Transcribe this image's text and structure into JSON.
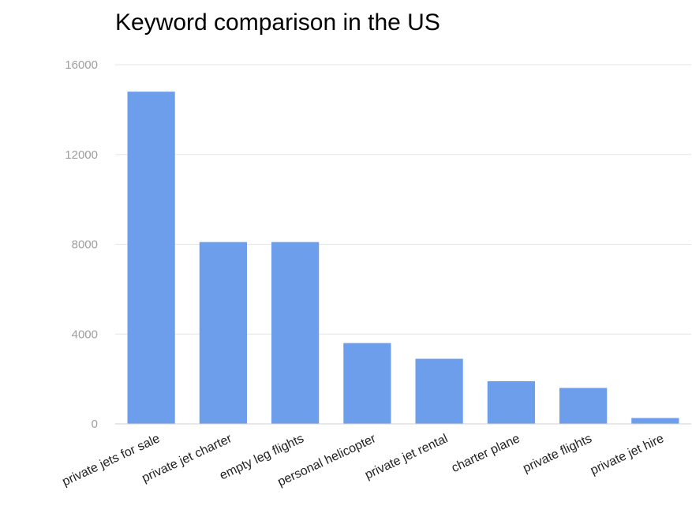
{
  "chart_data": {
    "type": "bar",
    "title": "Keyword comparison in the US",
    "xlabel": "",
    "ylabel": "",
    "categories": [
      "private jets for sale",
      "private jet charter",
      "empty leg flights",
      "personal helicopter",
      "private jet rental",
      "charter plane",
      "private flights",
      "private jet hire"
    ],
    "values": [
      14800,
      8100,
      8100,
      3600,
      2900,
      1900,
      1600,
      260
    ],
    "ylim": [
      0,
      16000
    ],
    "yticks": [
      "0",
      "4000",
      "8000",
      "12000",
      "16000"
    ],
    "grid": true,
    "legend": "none",
    "bar_color": "#6d9eeb"
  }
}
